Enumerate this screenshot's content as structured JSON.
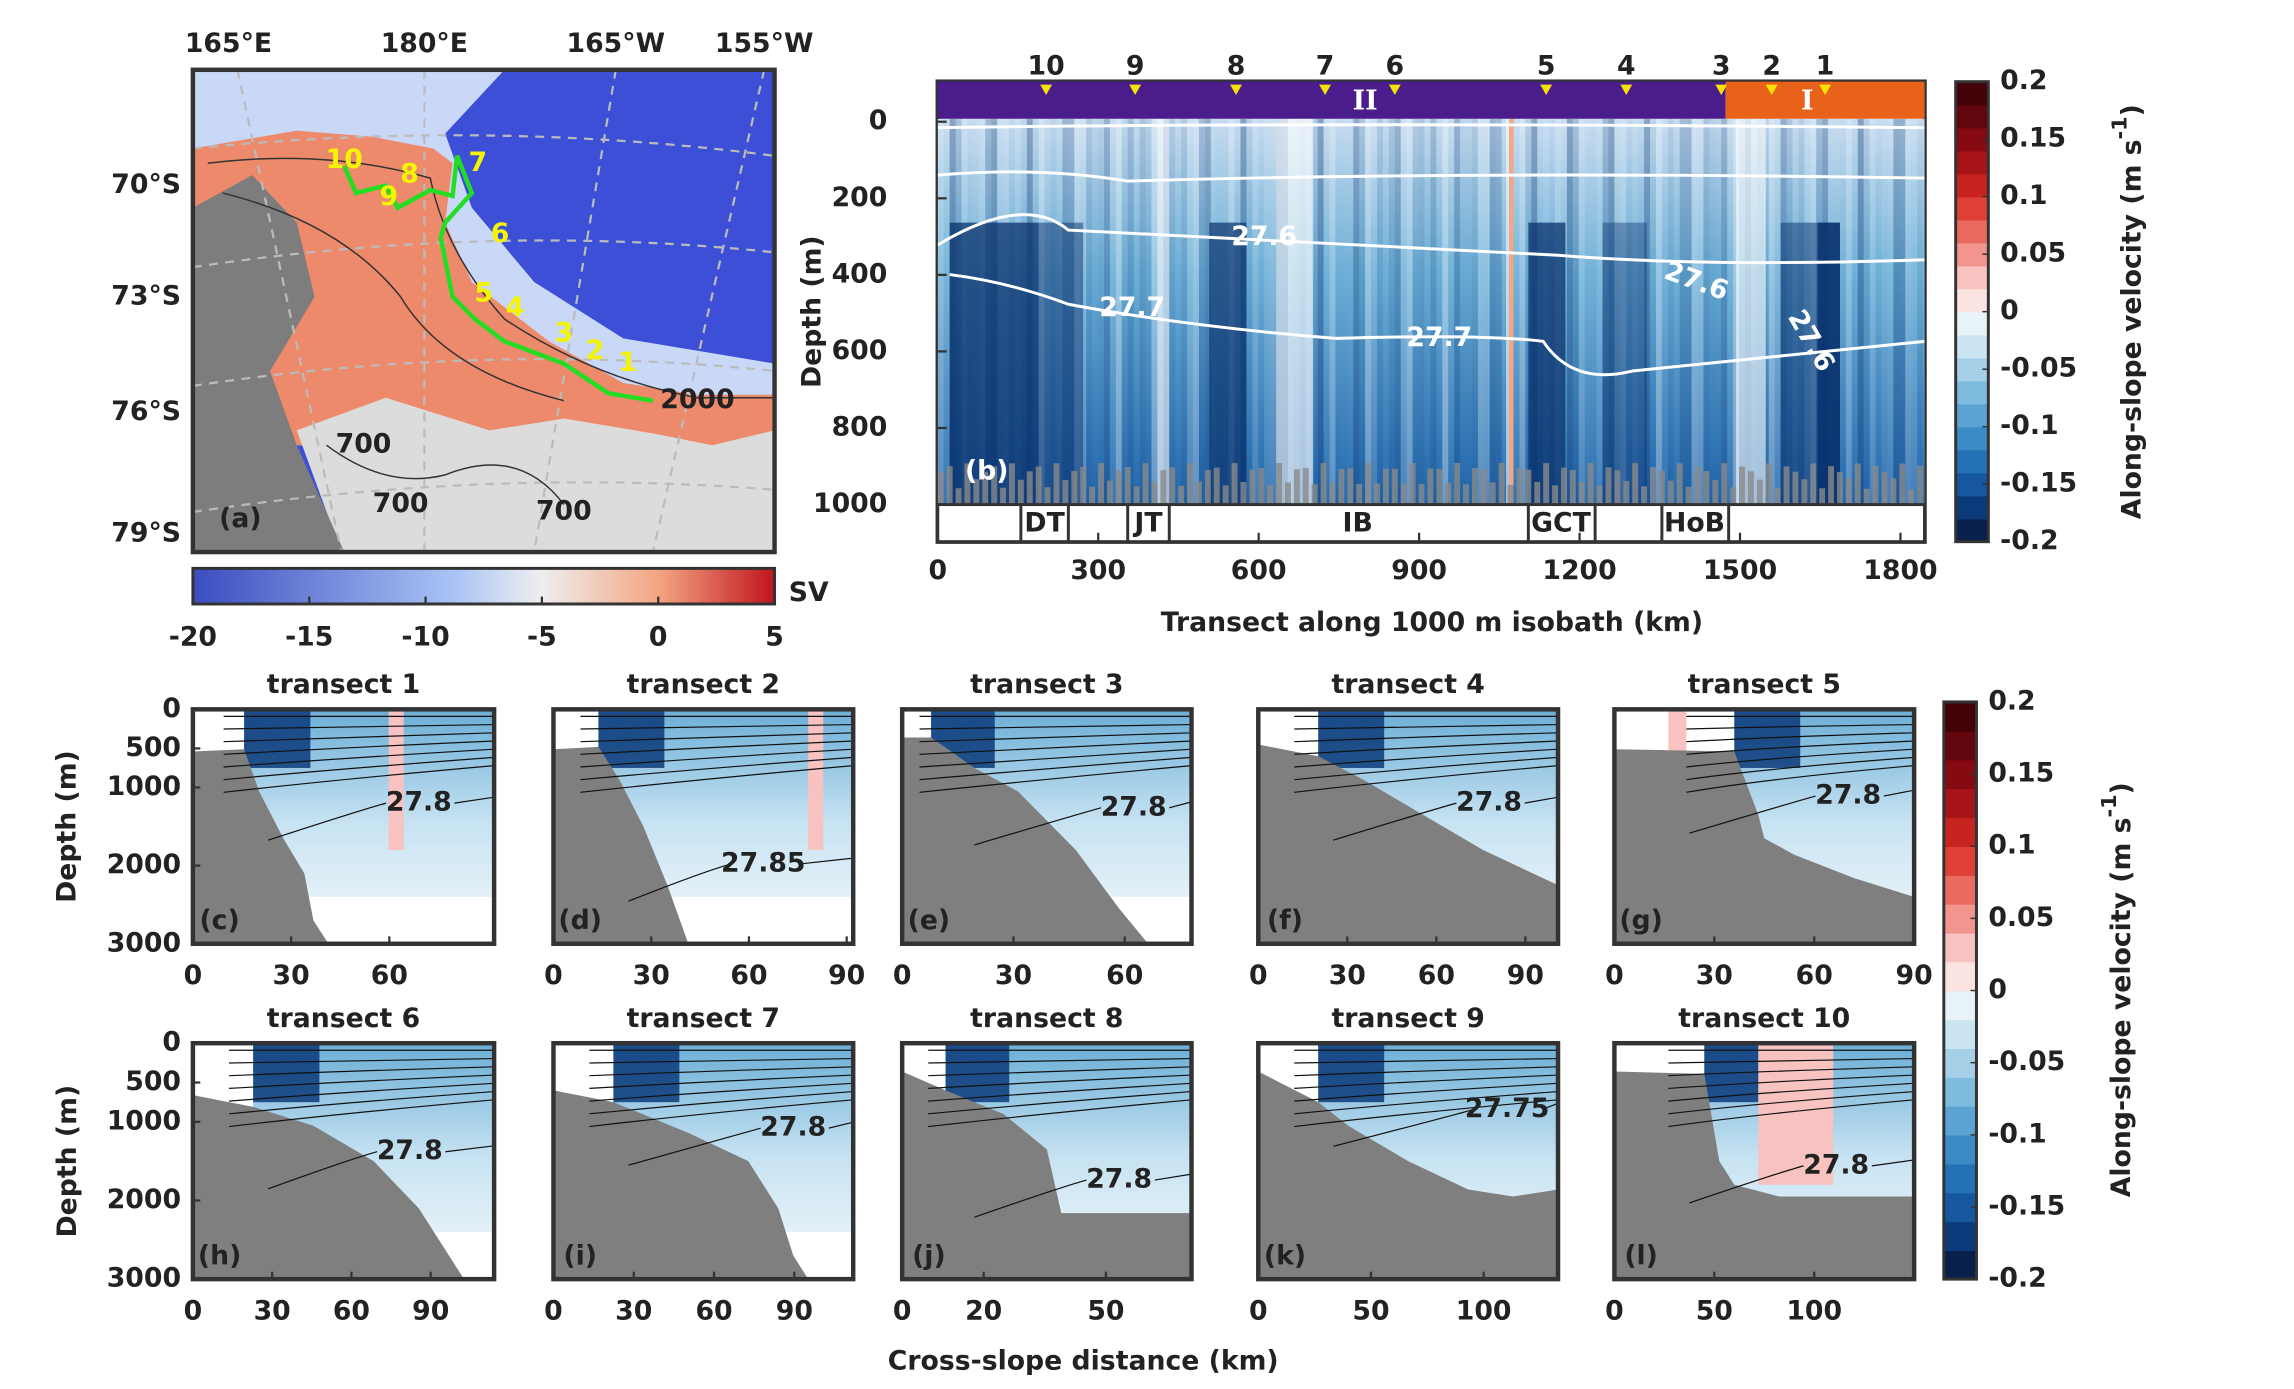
{
  "map": {
    "panel_label": "(a)",
    "lon_labels": [
      "165°E",
      "180°E",
      "165°W",
      "155°W"
    ],
    "lat_labels": [
      "70°S",
      "73°S",
      "76°S",
      "79°S"
    ],
    "stations": [
      "1",
      "2",
      "3",
      "4",
      "5",
      "6",
      "7",
      "8",
      "9",
      "10"
    ],
    "isobath_labels": [
      "700",
      "700",
      "700",
      "2000"
    ]
  },
  "map_colorbar": {
    "label": "SV",
    "lim": [
      -20,
      5
    ],
    "ticks": [
      -20,
      -15,
      -10,
      -5,
      0,
      5
    ]
  },
  "section": {
    "panel_label": "(b)",
    "xlabel": "Transect along 1000 m isobath (km)",
    "ylabel": "Depth (m)",
    "xlim": [
      0,
      1845
    ],
    "xticks": [
      0,
      300,
      600,
      900,
      1200,
      1500,
      1800
    ],
    "ylim": [
      0,
      1000
    ],
    "yticks": [
      0,
      200,
      400,
      600,
      800,
      1000
    ],
    "regions": [
      "II",
      "I"
    ],
    "stations": [
      "10",
      "9",
      "8",
      "7",
      "6",
      "5",
      "4",
      "3",
      "2",
      "1"
    ],
    "features": [
      "DT",
      "JT",
      "IB",
      "GCT",
      "HoB"
    ],
    "contour_labels": [
      "27.6",
      "27.7",
      "27.7",
      "27.6",
      "27.6"
    ]
  },
  "velocity_colorbar": {
    "label": "Along-slope velocity (m s",
    "label_superscript": "-1",
    "label_end": ")",
    "lim": [
      -0.2,
      0.2
    ],
    "ticks": [
      -0.2,
      -0.15,
      -0.1,
      -0.05,
      0,
      0.05,
      0.1,
      0.15,
      0.2
    ]
  },
  "transects": {
    "xlabel": "Cross-slope distance (km)",
    "ylabel": "Depth (m)",
    "ylim": [
      0,
      3000
    ],
    "yticks": [
      0,
      500,
      1000,
      2000,
      3000
    ],
    "panels": [
      {
        "title": "transect 1",
        "panel_label": "(c)",
        "xlim": [
          0,
          92
        ],
        "xticks": [
          0,
          30,
          60
        ],
        "contour_label": "27.8"
      },
      {
        "title": "transect 2",
        "panel_label": "(d)",
        "xlim": [
          0,
          92
        ],
        "xticks": [
          0,
          30,
          60,
          90
        ],
        "contour_label": "27.85"
      },
      {
        "title": "transect 3",
        "panel_label": "(e)",
        "xlim": [
          0,
          78
        ],
        "xticks": [
          0,
          30,
          60
        ],
        "contour_label": "27.8"
      },
      {
        "title": "transect 4",
        "panel_label": "(f)",
        "xlim": [
          0,
          101
        ],
        "xticks": [
          0,
          30,
          60,
          90
        ],
        "contour_label": "27.8"
      },
      {
        "title": "transect 5",
        "panel_label": "(g)",
        "xlim": [
          0,
          90
        ],
        "xticks": [
          0,
          30,
          60,
          90
        ],
        "contour_label": "27.8"
      },
      {
        "title": "transect 6",
        "panel_label": "(h)",
        "xlim": [
          0,
          114
        ],
        "xticks": [
          0,
          30,
          60,
          90
        ],
        "contour_label": "27.8"
      },
      {
        "title": "transect 7",
        "panel_label": "(i)",
        "xlim": [
          0,
          112
        ],
        "xticks": [
          0,
          30,
          60,
          90
        ],
        "contour_label": "27.8"
      },
      {
        "title": "transect 8",
        "panel_label": "(j)",
        "xlim": [
          0,
          71
        ],
        "xticks": [
          0,
          20,
          50
        ],
        "contour_label": "27.8"
      },
      {
        "title": "transect 9",
        "panel_label": "(k)",
        "xlim": [
          0,
          133
        ],
        "xticks": [
          0,
          50,
          100
        ],
        "contour_label": "27.75"
      },
      {
        "title": "transect 10",
        "panel_label": "(l)",
        "xlim": [
          0,
          150
        ],
        "xticks": [
          0,
          50,
          100
        ],
        "contour_label": "27.8"
      }
    ]
  }
}
